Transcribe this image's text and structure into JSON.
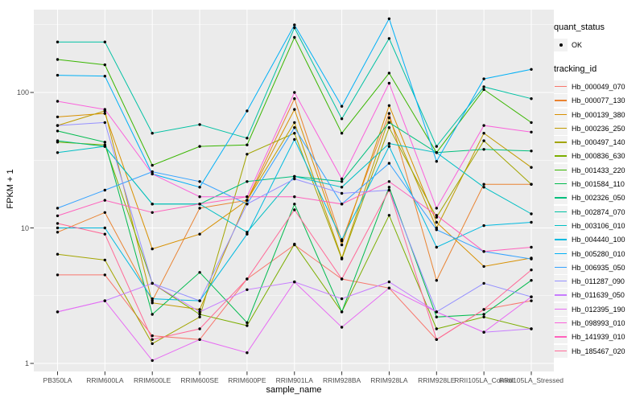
{
  "chart_data": {
    "type": "line",
    "title": "",
    "xlabel": "sample_name",
    "ylabel": "FPKM + 1",
    "y_scale": "log10",
    "y_ticks": [
      1,
      10,
      100
    ],
    "y_tick_labels": [
      "1",
      "10",
      "100"
    ],
    "y_minor_ticks": [
      3.162,
      31.62,
      316.2
    ],
    "ylim": [
      1,
      407
    ],
    "grid": true,
    "legend_position": "right",
    "panel_bg": "#EBEBEB",
    "grid_color": "#FFFFFF",
    "axis_text_color": "#4D4D4D",
    "tick_mark_color": "#333333",
    "point_color": "#000000",
    "legend_key_bg": "#F2F2F2",
    "categories": [
      "PB350LA",
      "RRIM600LA",
      "RRIM600LE",
      "RRIM600SE",
      "RRIM600PE",
      "RRIM901LA",
      "RRIM928BA",
      "RRIM928LA",
      "RRIM928LE",
      "RRII105LA_Control",
      "RRII105LA_Stressed"
    ],
    "legend": {
      "quant_status": {
        "title": "quant_status",
        "items": [
          {
            "label": "OK",
            "shape": "point",
            "color": "#000000"
          }
        ]
      },
      "tracking_id": {
        "title": "tracking_id"
      }
    },
    "series": [
      {
        "name": "Hb_000049_070",
        "color": "#F8766D",
        "values": [
          4.5,
          4.5,
          1.6,
          1.5,
          4.2,
          7.5,
          4.2,
          3.6,
          1.5,
          2.5,
          2.9
        ]
      },
      {
        "name": "Hb_000077_130",
        "color": "#EA8331",
        "values": [
          9.3,
          13,
          2.9,
          14,
          16,
          90,
          8,
          70,
          4.1,
          21,
          21
        ]
      },
      {
        "name": "Hb_000139_380",
        "color": "#D89000",
        "values": [
          66,
          70,
          7,
          9,
          16,
          75,
          7.5,
          80,
          11,
          5.2,
          6
        ]
      },
      {
        "name": "Hb_000236_250",
        "color": "#C09B00",
        "values": [
          57,
          73,
          2.8,
          2.5,
          16,
          60,
          6,
          65,
          10,
          50,
          28
        ]
      },
      {
        "name": "Hb_000497_140",
        "color": "#A3A500",
        "values": [
          6.4,
          5.8,
          1.4,
          2.2,
          35,
          50,
          5.9,
          55,
          12,
          44,
          21
        ]
      },
      {
        "name": "Hb_000836_630",
        "color": "#7CAE00",
        "values": [
          43,
          41,
          3.9,
          2.3,
          1.9,
          7.6,
          2.4,
          12.4,
          1.8,
          2.2,
          1.8
        ]
      },
      {
        "name": "Hb_001433_220",
        "color": "#39B600",
        "values": [
          175,
          160,
          29,
          40,
          41,
          255,
          50,
          139,
          36,
          105,
          60
        ]
      },
      {
        "name": "Hb_001584_110",
        "color": "#00BB4E",
        "values": [
          52,
          43,
          2.3,
          4.7,
          2.0,
          15,
          2.4,
          20,
          2.2,
          2.3,
          4.1
        ]
      },
      {
        "name": "Hb_002326_050",
        "color": "#00BF7D",
        "values": [
          44,
          40,
          15,
          15,
          22,
          24,
          22,
          60,
          36,
          38,
          37
        ]
      },
      {
        "name": "Hb_002874_070",
        "color": "#00C1A3",
        "values": [
          236,
          236,
          50,
          58,
          46,
          300,
          64,
          250,
          40,
          110,
          90
        ]
      },
      {
        "name": "Hb_003106_010",
        "color": "#00BFC4",
        "values": [
          36,
          40,
          15,
          15,
          9.3,
          24,
          20,
          42,
          36,
          20,
          12.7
        ]
      },
      {
        "name": "Hb_004440_100",
        "color": "#00BAE0",
        "values": [
          10,
          10,
          3.0,
          2.9,
          9,
          45,
          8.2,
          40,
          7.2,
          10.4,
          11
        ]
      },
      {
        "name": "Hb_005280_010",
        "color": "#00B0F6",
        "values": [
          134,
          132,
          25,
          20,
          73,
          315,
          79,
          350,
          31,
          126,
          148
        ]
      },
      {
        "name": "Hb_006935_050",
        "color": "#35A2FF",
        "values": [
          14,
          19,
          26,
          22,
          15,
          55,
          15,
          30,
          9.7,
          6.7,
          5.9
        ]
      },
      {
        "name": "Hb_011287_090",
        "color": "#9590FF",
        "values": [
          57,
          60,
          3.9,
          2.9,
          15,
          23,
          18,
          19,
          2.4,
          3.9,
          3.1
        ]
      },
      {
        "name": "Hb_011639_050",
        "color": "#C77CFF",
        "values": [
          2.4,
          2.9,
          3.9,
          2.4,
          3.5,
          4.0,
          3.0,
          4.0,
          2.4,
          1.7,
          1.8
        ]
      },
      {
        "name": "Hb_012395_190",
        "color": "#E76BF3",
        "values": [
          2.4,
          2.9,
          1.05,
          1.5,
          1.2,
          4.0,
          1.85,
          3.6,
          2.4,
          1.7,
          3.1
        ]
      },
      {
        "name": "Hb_098993_010",
        "color": "#FA62DB",
        "values": [
          86,
          75,
          25,
          17,
          17,
          100,
          23,
          117,
          14,
          57,
          51
        ]
      },
      {
        "name": "Hb_141939_010",
        "color": "#FF62BC",
        "values": [
          12.3,
          16,
          13,
          15,
          17,
          17,
          15,
          22,
          12.4,
          6.7,
          7.2
        ]
      },
      {
        "name": "Hb_185467_020",
        "color": "#FF6A98",
        "values": [
          10.8,
          9,
          1.5,
          1.8,
          4.2,
          13.6,
          4.2,
          19,
          1.5,
          2.5,
          4.9
        ]
      }
    ]
  }
}
